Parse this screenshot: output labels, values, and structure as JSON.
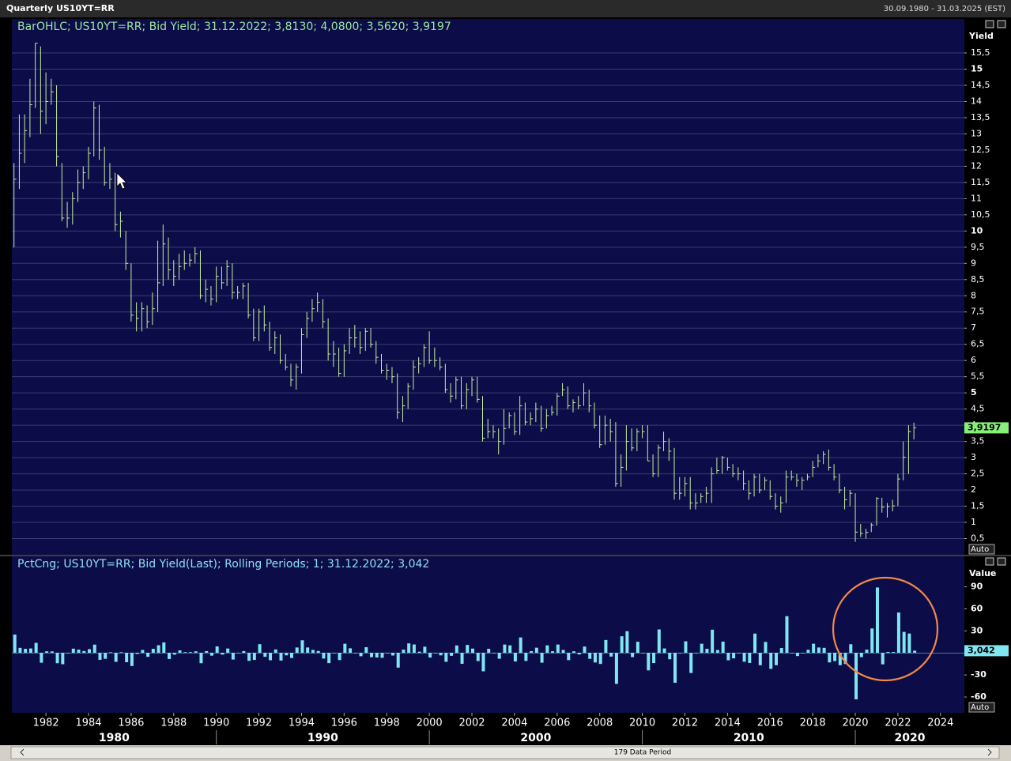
{
  "window_title": "Quarterly US10YT=RR",
  "date_range": "30.09.1980 - 31.03.2025 (EST)",
  "footer": "179 Data Period",
  "chart_data": [
    {
      "type": "ohlc",
      "title": "BarOHLC; US10YT=RR; Bid Yield; 31.12.2022; 3,8130; 4,0800; 3,5620; 3,9197",
      "y_axis_label": "Yield",
      "last_value_label": "3,9197",
      "auto_label": "Auto",
      "color": "#c6eea0",
      "badge_color": "#86f07a",
      "title_color": "#9be89b",
      "grid": true,
      "x": [
        1980.5,
        1980.75,
        1981,
        1981.25,
        1981.5,
        1981.75,
        1982,
        1982.25,
        1982.5,
        1982.75,
        1983,
        1983.25,
        1983.5,
        1983.75,
        1984,
        1984.25,
        1984.5,
        1984.75,
        1985,
        1985.25,
        1985.5,
        1985.75,
        1986,
        1986.25,
        1986.5,
        1986.75,
        1987,
        1987.25,
        1987.5,
        1987.75,
        1988,
        1988.25,
        1988.5,
        1988.75,
        1989,
        1989.25,
        1989.5,
        1989.75,
        1990,
        1990.25,
        1990.5,
        1990.75,
        1991,
        1991.25,
        1991.5,
        1991.75,
        1992,
        1992.25,
        1992.5,
        1992.75,
        1993,
        1993.25,
        1993.5,
        1993.75,
        1994,
        1994.25,
        1994.5,
        1994.75,
        1995,
        1995.25,
        1995.5,
        1995.75,
        1996,
        1996.25,
        1996.5,
        1996.75,
        1997,
        1997.25,
        1997.5,
        1997.75,
        1998,
        1998.25,
        1998.5,
        1998.75,
        1999,
        1999.25,
        1999.5,
        1999.75,
        2000,
        2000.25,
        2000.5,
        2000.75,
        2001,
        2001.25,
        2001.5,
        2001.75,
        2002,
        2002.25,
        2002.5,
        2002.75,
        2003,
        2003.25,
        2003.5,
        2003.75,
        2004,
        2004.25,
        2004.5,
        2004.75,
        2005,
        2005.25,
        2005.5,
        2005.75,
        2006,
        2006.25,
        2006.5,
        2006.75,
        2007,
        2007.25,
        2007.5,
        2007.75,
        2008,
        2008.25,
        2008.5,
        2008.75,
        2009,
        2009.25,
        2009.5,
        2009.75,
        2010,
        2010.25,
        2010.5,
        2010.75,
        2011,
        2011.25,
        2011.5,
        2011.75,
        2012,
        2012.25,
        2012.5,
        2012.75,
        2013,
        2013.25,
        2013.5,
        2013.75,
        2014,
        2014.25,
        2014.5,
        2014.75,
        2015,
        2015.25,
        2015.5,
        2015.75,
        2016,
        2016.25,
        2016.5,
        2016.75,
        2017,
        2017.25,
        2017.5,
        2017.75,
        2018,
        2018.25,
        2018.5,
        2018.75,
        2019,
        2019.25,
        2019.5,
        2019.75,
        2020,
        2020.25,
        2020.5,
        2020.75,
        2021,
        2021.25,
        2021.5,
        2021.75,
        2022,
        2022.25,
        2022.5,
        2022.75
      ],
      "high": [
        12.1,
        13.6,
        13.6,
        14.7,
        15.8,
        15.7,
        14.9,
        14.7,
        14.5,
        12.1,
        10.9,
        11.2,
        11.9,
        12.0,
        12.6,
        14.0,
        13.9,
        12.6,
        12.1,
        11.8,
        10.6,
        10.0,
        9.0,
        7.8,
        7.8,
        7.7,
        8.1,
        9.7,
        10.2,
        9.8,
        9.1,
        9.3,
        9.4,
        9.3,
        9.5,
        9.4,
        8.5,
        8.3,
        8.9,
        8.9,
        9.1,
        9.0,
        8.3,
        8.4,
        8.4,
        7.6,
        7.6,
        7.7,
        7.2,
        6.9,
        6.8,
        6.2,
        5.9,
        5.9,
        7.0,
        7.5,
        7.9,
        8.1,
        7.9,
        7.3,
        6.6,
        6.4,
        6.5,
        7.0,
        7.1,
        6.9,
        7.0,
        7.0,
        6.6,
        6.2,
        5.9,
        5.8,
        5.6,
        4.9,
        5.3,
        6.0,
        6.1,
        6.5,
        6.9,
        6.4,
        6.1,
        5.9,
        5.3,
        5.5,
        5.5,
        5.3,
        5.5,
        5.5,
        4.9,
        4.2,
        4.0,
        3.9,
        4.5,
        4.4,
        4.4,
        4.9,
        4.7,
        4.4,
        4.7,
        4.6,
        4.5,
        4.6,
        5.0,
        5.3,
        5.2,
        4.8,
        4.9,
        5.3,
        5.1,
        4.7,
        4.3,
        4.3,
        4.2,
        4.1,
        3.1,
        4.0,
        3.9,
        3.9,
        4.0,
        4.0,
        3.1,
        3.4,
        3.8,
        3.6,
        3.3,
        2.4,
        2.4,
        2.4,
        1.9,
        1.9,
        2.1,
        2.7,
        3.0,
        3.05,
        3.0,
        2.8,
        2.7,
        2.6,
        2.3,
        2.5,
        2.5,
        2.4,
        2.3,
        1.9,
        1.8,
        2.6,
        2.6,
        2.5,
        2.4,
        2.5,
        2.9,
        3.1,
        3.2,
        3.25,
        2.8,
        2.5,
        2.1,
        2.0,
        1.9,
        0.95,
        0.8,
        0.98,
        1.78,
        1.76,
        1.6,
        1.7,
        2.5,
        3.5,
        4.0,
        4.08
      ],
      "low": [
        9.5,
        11.3,
        12.1,
        12.9,
        13.8,
        13.0,
        13.3,
        13.9,
        12.0,
        10.3,
        10.1,
        10.2,
        10.9,
        11.3,
        11.6,
        12.3,
        12.2,
        11.4,
        11.3,
        10.0,
        9.8,
        8.8,
        7.2,
        6.9,
        6.9,
        7.0,
        7.1,
        7.5,
        8.3,
        8.5,
        8.3,
        8.5,
        8.8,
        8.9,
        9.0,
        7.9,
        7.8,
        7.7,
        7.8,
        8.2,
        8.3,
        7.9,
        7.9,
        7.9,
        7.3,
        6.6,
        6.6,
        6.9,
        6.3,
        6.2,
        5.9,
        5.7,
        5.2,
        5.1,
        5.6,
        6.7,
        7.2,
        7.5,
        7.0,
        6.0,
        5.8,
        5.5,
        5.5,
        6.2,
        6.4,
        6.2,
        6.3,
        6.4,
        5.9,
        5.6,
        5.4,
        5.3,
        4.2,
        4.1,
        4.5,
        5.1,
        5.6,
        5.8,
        5.9,
        5.8,
        5.7,
        5.0,
        4.7,
        4.8,
        4.5,
        4.5,
        4.9,
        4.7,
        3.5,
        3.6,
        3.6,
        3.1,
        3.4,
        3.9,
        3.7,
        3.7,
        4.0,
        4.0,
        4.1,
        3.8,
        3.9,
        4.3,
        4.3,
        4.9,
        4.5,
        4.4,
        4.5,
        4.6,
        4.4,
        3.9,
        3.3,
        3.4,
        3.5,
        2.1,
        2.1,
        2.6,
        3.2,
        3.2,
        3.6,
        2.9,
        2.4,
        2.4,
        3.2,
        2.9,
        1.7,
        1.7,
        1.8,
        1.4,
        1.4,
        1.6,
        1.6,
        1.6,
        2.5,
        2.5,
        2.6,
        2.4,
        2.3,
        2.0,
        1.7,
        1.8,
        1.9,
        2.0,
        1.7,
        1.4,
        1.3,
        1.6,
        2.3,
        2.1,
        2.0,
        2.3,
        2.4,
        2.7,
        2.8,
        2.6,
        2.3,
        1.9,
        1.4,
        1.5,
        0.4,
        0.55,
        0.5,
        0.7,
        0.9,
        1.3,
        1.15,
        1.34,
        1.5,
        2.3,
        2.5,
        3.562
      ],
      "close": [
        11.6,
        12.4,
        13.1,
        13.9,
        15.8,
        13.7,
        14.0,
        14.3,
        12.3,
        10.4,
        10.4,
        11.0,
        11.5,
        11.8,
        12.4,
        13.8,
        12.5,
        11.5,
        11.6,
        10.2,
        10.3,
        9.0,
        7.4,
        7.3,
        7.6,
        7.2,
        7.6,
        8.4,
        9.6,
        8.8,
        8.6,
        8.9,
        9.0,
        9.1,
        9.3,
        8.0,
        8.2,
        7.9,
        8.6,
        8.4,
        8.9,
        8.1,
        8.1,
        8.3,
        7.4,
        6.7,
        7.5,
        7.1,
        6.4,
        6.7,
        6.0,
        5.8,
        5.4,
        5.8,
        6.8,
        7.3,
        7.6,
        7.8,
        7.2,
        6.2,
        6.2,
        5.6,
        6.3,
        6.7,
        6.7,
        6.4,
        6.9,
        6.5,
        6.1,
        5.7,
        5.7,
        5.5,
        4.4,
        4.6,
        5.2,
        5.8,
        5.9,
        6.4,
        6.0,
        6.0,
        5.8,
        5.1,
        4.9,
        5.4,
        4.6,
        5.1,
        5.4,
        4.8,
        3.6,
        3.8,
        3.8,
        3.5,
        3.9,
        4.3,
        3.8,
        4.6,
        4.1,
        4.2,
        4.5,
        3.9,
        4.3,
        4.4,
        4.9,
        5.1,
        4.6,
        4.7,
        4.6,
        5.0,
        4.6,
        4.0,
        3.4,
        4.0,
        3.8,
        2.2,
        2.7,
        3.5,
        3.3,
        3.8,
        3.8,
        2.9,
        2.5,
        3.3,
        3.5,
        3.2,
        1.9,
        1.9,
        2.2,
        1.6,
        1.6,
        1.8,
        1.9,
        2.5,
        2.6,
        3.0,
        2.7,
        2.5,
        2.5,
        2.2,
        1.9,
        2.4,
        2.0,
        2.3,
        1.8,
        1.5,
        1.6,
        2.4,
        2.4,
        2.3,
        2.3,
        2.4,
        2.7,
        2.9,
        3.1,
        2.7,
        2.4,
        2.0,
        1.7,
        1.9,
        0.7,
        0.66,
        0.69,
        0.92,
        1.74,
        1.47,
        1.49,
        1.51,
        2.34,
        3.01,
        3.804,
        3.9197
      ],
      "xlim": [
        1980.4,
        2025.12
      ],
      "xticks": [
        1982,
        1984,
        1986,
        1988,
        1990,
        1992,
        1994,
        1996,
        1998,
        2000,
        2002,
        2004,
        2006,
        2008,
        2010,
        2012,
        2014,
        2016,
        2018,
        2020,
        2022,
        2024
      ],
      "decade_labels": [
        1980,
        1990,
        2000,
        2010,
        2020
      ],
      "ylim": [
        0,
        16.55
      ],
      "yticks": [
        {
          "value": 0.5,
          "label": "0,5"
        },
        1,
        {
          "value": 1.5,
          "label": "1,5"
        },
        2,
        {
          "value": 2.5,
          "label": "2,5"
        },
        3,
        {
          "value": 3.5,
          "label": "3,5"
        },
        4,
        {
          "value": 4.5,
          "label": "4,5"
        },
        5,
        {
          "value": 5.5,
          "label": "5,5"
        },
        6,
        {
          "value": 6.5,
          "label": "6,5"
        },
        7,
        {
          "value": 7.5,
          "label": "7,5"
        },
        8,
        {
          "value": 8.5,
          "label": "8,5"
        },
        9,
        {
          "value": 9.5,
          "label": "9,5"
        },
        10,
        {
          "value": 10.5,
          "label": "10,5"
        },
        11,
        {
          "value": 11.5,
          "label": "11,5"
        },
        12,
        {
          "value": 12.5,
          "label": "12,5"
        },
        13,
        {
          "value": 13.5,
          "label": "13,5"
        },
        14,
        {
          "value": 14.5,
          "label": "14,5"
        },
        15,
        {
          "value": 15.5,
          "label": "15,5"
        }
      ]
    },
    {
      "type": "bar",
      "title": "PctCng; US10YT=RR; Bid Yield(Last); Rolling Periods; 1; 31.12.2022; 3,042",
      "y_axis_label": "Value",
      "last_value_label": "3,042",
      "auto_label": "Auto",
      "color": "#7fe6f2",
      "badge_color": "#7fe6f2",
      "title_color": "#8ee0f0",
      "grid": false,
      "values": [
        25,
        6.9,
        5.6,
        6.1,
        13.7,
        -13.3,
        2.2,
        2.1,
        -14.0,
        -15.4,
        0,
        5.8,
        4.5,
        2.6,
        5.1,
        11.3,
        -9.4,
        -8.0,
        0.9,
        -12.1,
        1.0,
        -12.6,
        -17.8,
        -1.4,
        4.1,
        -5.3,
        5.6,
        10.5,
        14.3,
        -8.3,
        -2.3,
        3.5,
        1.1,
        1.1,
        2.2,
        -14.0,
        2.5,
        -3.7,
        8.9,
        -2.3,
        6.0,
        -9.0,
        0,
        2.5,
        -10.8,
        -9.5,
        11.9,
        -5.3,
        -9.9,
        4.7,
        -10.4,
        -3.3,
        -6.9,
        7.4,
        17.2,
        7.4,
        4.1,
        2.6,
        -7.7,
        -13.9,
        0,
        -9.7,
        12.5,
        6.3,
        0,
        -4.5,
        7.8,
        -5.8,
        -6.2,
        -6.6,
        0,
        -3.5,
        -20.0,
        4.5,
        13.0,
        11.5,
        1.7,
        8.5,
        -6.3,
        0,
        -3.3,
        -12.1,
        -3.9,
        10.2,
        -14.8,
        10.9,
        5.9,
        -11.1,
        -25.0,
        5.6,
        0,
        -7.9,
        11.4,
        10.3,
        -11.6,
        21.1,
        -10.9,
        2.4,
        7.1,
        -13.3,
        10.3,
        2.3,
        11.4,
        4.1,
        -9.8,
        2.2,
        -2.1,
        8.7,
        -8.0,
        -13.0,
        -15.0,
        17.6,
        -5.0,
        -42.1,
        22.7,
        29.6,
        -5.7,
        15.2,
        0,
        -23.7,
        -13.8,
        32.0,
        6.1,
        -8.6,
        -40.6,
        0,
        15.8,
        -27.3,
        0,
        12.5,
        5.6,
        31.6,
        4.0,
        15.4,
        -10.0,
        -7.4,
        0,
        -12.0,
        -13.6,
        26.3,
        -16.7,
        15.0,
        -21.7,
        -16.7,
        6.7,
        50.0,
        0,
        -4.2,
        0,
        4.3,
        12.5,
        7.4,
        6.9,
        -12.9,
        -11.1,
        -16.7,
        -15.0,
        11.8,
        -63.2,
        -5.7,
        4.5,
        33.3,
        89.1,
        -15.5,
        1.4,
        1.3,
        55.0,
        28.6,
        26.4,
        3.042
      ],
      "ylim": [
        -81.5,
        131.5
      ],
      "yticks": [
        -60,
        -30,
        30,
        60,
        90
      ]
    }
  ]
}
